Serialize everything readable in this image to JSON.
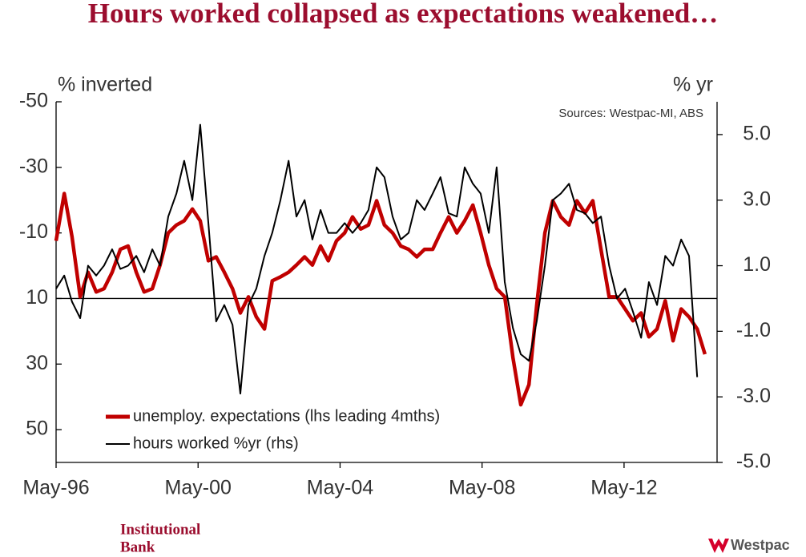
{
  "chart_data": {
    "type": "line",
    "title": "Hours worked collapsed as expectations weakened…",
    "y_label": "% inverted",
    "y2_label": "% yr",
    "source": "Sources: Westpac-MI, ABS",
    "legend": "lower left",
    "x": [
      1996.33,
      1996.56,
      1996.78,
      1997.01,
      1997.23,
      1997.46,
      1997.68,
      1997.91,
      1998.14,
      1998.36,
      1998.59,
      1998.81,
      1999.04,
      1999.26,
      1999.49,
      1999.72,
      1999.94,
      2000.17,
      2000.39,
      2000.62,
      2000.84,
      2001.07,
      2001.3,
      2001.52,
      2001.75,
      2001.97,
      2002.2,
      2002.42,
      2002.65,
      2002.88,
      2003.1,
      2003.33,
      2003.55,
      2003.78,
      2004.0,
      2004.23,
      2004.46,
      2004.68,
      2004.91,
      2005.13,
      2005.36,
      2005.58,
      2005.81,
      2006.04,
      2006.26,
      2006.49,
      2006.71,
      2006.94,
      2007.16,
      2007.39,
      2007.62,
      2007.84,
      2008.07,
      2008.29,
      2008.52,
      2008.74,
      2008.97,
      2009.2,
      2009.42,
      2009.65,
      2009.87,
      2010.1,
      2010.32,
      2010.55,
      2010.78,
      2011.0,
      2011.23,
      2011.45,
      2011.68,
      2011.91,
      2012.13,
      2012.36,
      2012.58,
      2012.81,
      2013.03,
      2013.26,
      2013.49,
      2013.71,
      2013.94,
      2014.16,
      2014.39,
      2014.61
    ],
    "series": [
      {
        "name": "unemploy. expectations (lhs leading 4mths)",
        "color": "#c00000",
        "axis": "y",
        "values": [
          -7.6,
          -22,
          -8.8,
          9.5,
          2,
          8,
          7,
          2,
          -5,
          -6,
          2,
          8,
          7,
          -0.2,
          -10,
          -12.4,
          -13.7,
          -17.3,
          -13.7,
          -1.5,
          -2.7,
          2,
          7,
          14.4,
          9.5,
          15.6,
          19.3,
          4.6,
          3.4,
          2,
          -0.2,
          -2.7,
          -0.2,
          -6,
          -1.5,
          -7.6,
          -10,
          -14.9,
          -11.2,
          -12.4,
          -19.8,
          -12.4,
          -10,
          -6,
          -5,
          -2.7,
          -5,
          -5,
          -10,
          -14.9,
          -10,
          -13.7,
          -18.5,
          -10,
          -0.2,
          7,
          9.5,
          28,
          42.4,
          36.3,
          12,
          -10,
          -19.8,
          -14.9,
          -12.4,
          -19.8,
          -16.1,
          -19.8,
          -5,
          9.5,
          9.5,
          13.2,
          16.8,
          14.4,
          21.7,
          19.3,
          10.7,
          22.9,
          13.2,
          15.6,
          19.3,
          27
        ]
      },
      {
        "name": "hours worked %yr (rhs)",
        "color": "#000000",
        "axis": "y2",
        "values": [
          0.3,
          0.7,
          -0.1,
          -0.6,
          1.0,
          0.7,
          1.0,
          1.5,
          0.9,
          1.0,
          1.3,
          0.8,
          1.5,
          1.0,
          2.5,
          3.2,
          4.2,
          3.0,
          5.3,
          2.3,
          -0.7,
          -0.2,
          -0.8,
          -2.9,
          -0.2,
          0.3,
          1.3,
          2.0,
          3.0,
          4.2,
          2.5,
          3.0,
          1.8,
          2.7,
          2.0,
          2.0,
          2.3,
          2.0,
          2.3,
          2.7,
          4.0,
          3.7,
          2.5,
          1.8,
          2.0,
          3.0,
          2.7,
          3.2,
          3.7,
          2.6,
          2.5,
          4.0,
          3.5,
          3.2,
          2.0,
          4.0,
          0.5,
          -0.9,
          -1.7,
          -1.9,
          -0.7,
          1.0,
          3.0,
          3.2,
          3.5,
          2.7,
          2.6,
          2.3,
          2.5,
          1.0,
          0.0,
          0.3,
          -0.4,
          -1.2,
          0.5,
          -0.2,
          1.3,
          1.0,
          1.8,
          1.3,
          -2.4,
          null
        ]
      }
    ],
    "xlim": [
      1996.33,
      2014.95
    ],
    "xticks": [
      {
        "value": 1996.33,
        "label": "May-96"
      },
      {
        "value": 2000.33,
        "label": "May-00"
      },
      {
        "value": 2004.33,
        "label": "May-04"
      },
      {
        "value": 2008.33,
        "label": "May-08"
      },
      {
        "value": 2012.33,
        "label": "May-12"
      }
    ],
    "ylim": [
      60,
      -50
    ],
    "yticks": [
      -50,
      -30,
      -10,
      10,
      30,
      50
    ],
    "y2lim": [
      -5,
      6
    ],
    "y2ticks": [
      {
        "value": 5,
        "label": "5.0"
      },
      {
        "value": 3,
        "label": "3.0"
      },
      {
        "value": 1,
        "label": "1.0"
      },
      {
        "value": -1,
        "label": "-1.0"
      },
      {
        "value": -3,
        "label": "-3.0"
      },
      {
        "value": -5,
        "label": "-5.0"
      }
    ]
  },
  "footer": {
    "brand": [
      "Institutional",
      "Bank"
    ],
    "logo": "Westpac"
  }
}
